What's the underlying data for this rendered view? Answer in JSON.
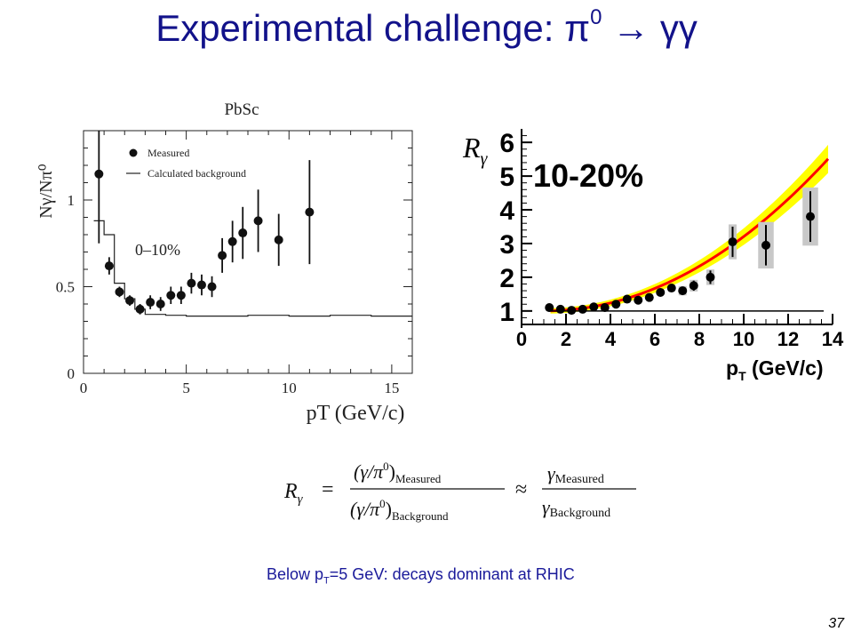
{
  "slide": {
    "title_main": "Experimental challenge: ",
    "title_pi": "π",
    "title_pi_sup": "0",
    "title_arrow": " → ",
    "title_gg": "γγ",
    "caption_before": "Below p",
    "caption_sub": "T",
    "caption_after": "=5 GeV: decays dominant at RHIC",
    "page_number": "37"
  },
  "formula": {
    "lhs": "R",
    "lhs_sub": "γ",
    "num1": "(γ/π",
    "num1_sup": "0",
    "num1_close": ")",
    "num1_sub": "Measured",
    "den1": "(γ/π",
    "den1_sup": "0",
    "den1_close": ")",
    "den1_sub": "Background",
    "approx": "≈",
    "num2": "γ",
    "num2_sub": "Measured",
    "den2": "γ",
    "den2_sub": "Background",
    "eq": "="
  },
  "chart_data": [
    {
      "type": "scatter",
      "title": "PbSc",
      "ylabel": "Nγ/Nπ⁰",
      "xlabel": "pT (GeV/c)",
      "annotation": "0–10%",
      "xlim": [
        0,
        16
      ],
      "ylim": [
        0,
        1.4
      ],
      "xticks": [
        0,
        5,
        10,
        15
      ],
      "yticks": [
        0,
        0.5,
        1
      ],
      "ytick_labels": [
        "0",
        "0.5",
        "1"
      ],
      "legend": [
        "Measured",
        "Calculated background"
      ],
      "series": [
        {
          "name": "Measured",
          "x": [
            0.75,
            1.25,
            1.75,
            2.25,
            2.75,
            3.25,
            3.75,
            4.25,
            4.75,
            5.25,
            5.75,
            6.25,
            6.75,
            7.25,
            7.75,
            8.5,
            9.5,
            11.0
          ],
          "y": [
            1.15,
            0.62,
            0.47,
            0.42,
            0.37,
            0.41,
            0.4,
            0.45,
            0.45,
            0.52,
            0.51,
            0.5,
            0.68,
            0.76,
            0.81,
            0.88,
            0.77,
            0.93
          ],
          "err": [
            0.4,
            0.05,
            0.03,
            0.03,
            0.03,
            0.04,
            0.04,
            0.05,
            0.05,
            0.06,
            0.06,
            0.06,
            0.1,
            0.12,
            0.15,
            0.18,
            0.15,
            0.3
          ]
        },
        {
          "name": "Calculated background",
          "x": [
            0.5,
            1.0,
            1.5,
            2.0,
            2.5,
            3.0,
            4.0,
            5.0,
            6.0,
            8.0,
            10.0,
            12.0,
            14.0,
            16.0
          ],
          "y": [
            0.88,
            0.8,
            0.52,
            0.43,
            0.37,
            0.34,
            0.335,
            0.33,
            0.33,
            0.335,
            0.33,
            0.335,
            0.33,
            0.33
          ]
        }
      ]
    },
    {
      "type": "scatter",
      "ylabel": "R",
      "ylabel_sub": "γ",
      "xlabel_main": "p",
      "xlabel_sub": "T",
      "xlabel_unit": " (GeV/c)",
      "annotation": "10-20%",
      "xlim": [
        0,
        14
      ],
      "ylim": [
        0.6,
        6.4
      ],
      "xticks": [
        0,
        2,
        4,
        6,
        8,
        10,
        12,
        14
      ],
      "yticks": [
        1,
        2,
        3,
        4,
        5,
        6
      ],
      "colors": {
        "band": "#ffff00",
        "curve": "#ff0000",
        "box": "#c8c8c8"
      },
      "series": [
        {
          "name": "Measured",
          "x": [
            1.25,
            1.75,
            2.25,
            2.75,
            3.25,
            3.75,
            4.25,
            4.75,
            5.25,
            5.75,
            6.25,
            6.75,
            7.25,
            7.75,
            8.5,
            9.5,
            11.0,
            13.0
          ],
          "y": [
            1.1,
            1.05,
            1.02,
            1.05,
            1.12,
            1.1,
            1.2,
            1.35,
            1.32,
            1.4,
            1.55,
            1.68,
            1.6,
            1.75,
            2.0,
            3.05,
            2.95,
            3.8
          ],
          "err": [
            0.05,
            0.05,
            0.05,
            0.05,
            0.05,
            0.05,
            0.05,
            0.07,
            0.07,
            0.07,
            0.1,
            0.1,
            0.12,
            0.15,
            0.2,
            0.45,
            0.6,
            0.75
          ]
        }
      ]
    }
  ]
}
